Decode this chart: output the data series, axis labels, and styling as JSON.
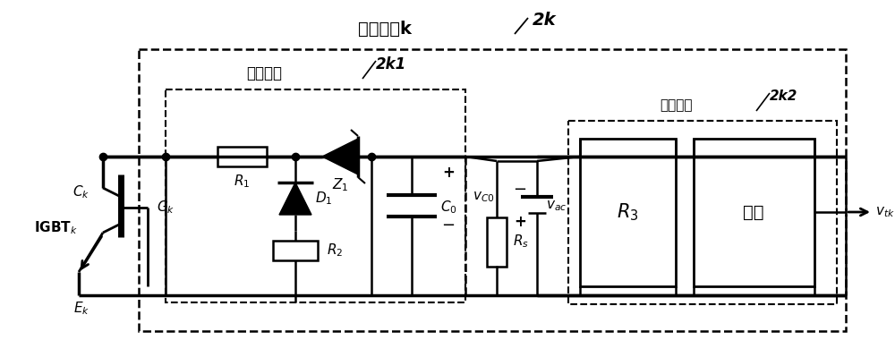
{
  "bg_color": "#ffffff",
  "line_color": "#000000",
  "box_outer_label": "箝位单元k",
  "box_outer_label2": "2k",
  "box_inner_label": "箝位电路",
  "box_inner_label2": "2k1",
  "box_isolation_label": "隔离电路",
  "box_isolation_label2": "2k2",
  "igbt_label": "IGBT",
  "igbt_sub": "k",
  "ck_label": "C",
  "ck_sub": "k",
  "gk_label": "G",
  "gk_sub": "k",
  "ek_label": "E",
  "ek_sub": "k",
  "r1_label": "R",
  "r1_sub": "1",
  "r2_label": "R",
  "r2_sub": "2",
  "d1_label": "D",
  "d1_sub": "1",
  "z1_label": "Z",
  "z1_sub": "1",
  "c0_label": "C",
  "c0_sub": "0",
  "vco_sub": "C0",
  "rs_label": "R",
  "rs_sub": "s",
  "vac_sub": "ac",
  "r3_label": "R",
  "r3_sub": "3",
  "guangou_label": "光耦",
  "vtk_sub": "tk",
  "figw": 10.0,
  "figh": 3.99,
  "dpi": 100
}
